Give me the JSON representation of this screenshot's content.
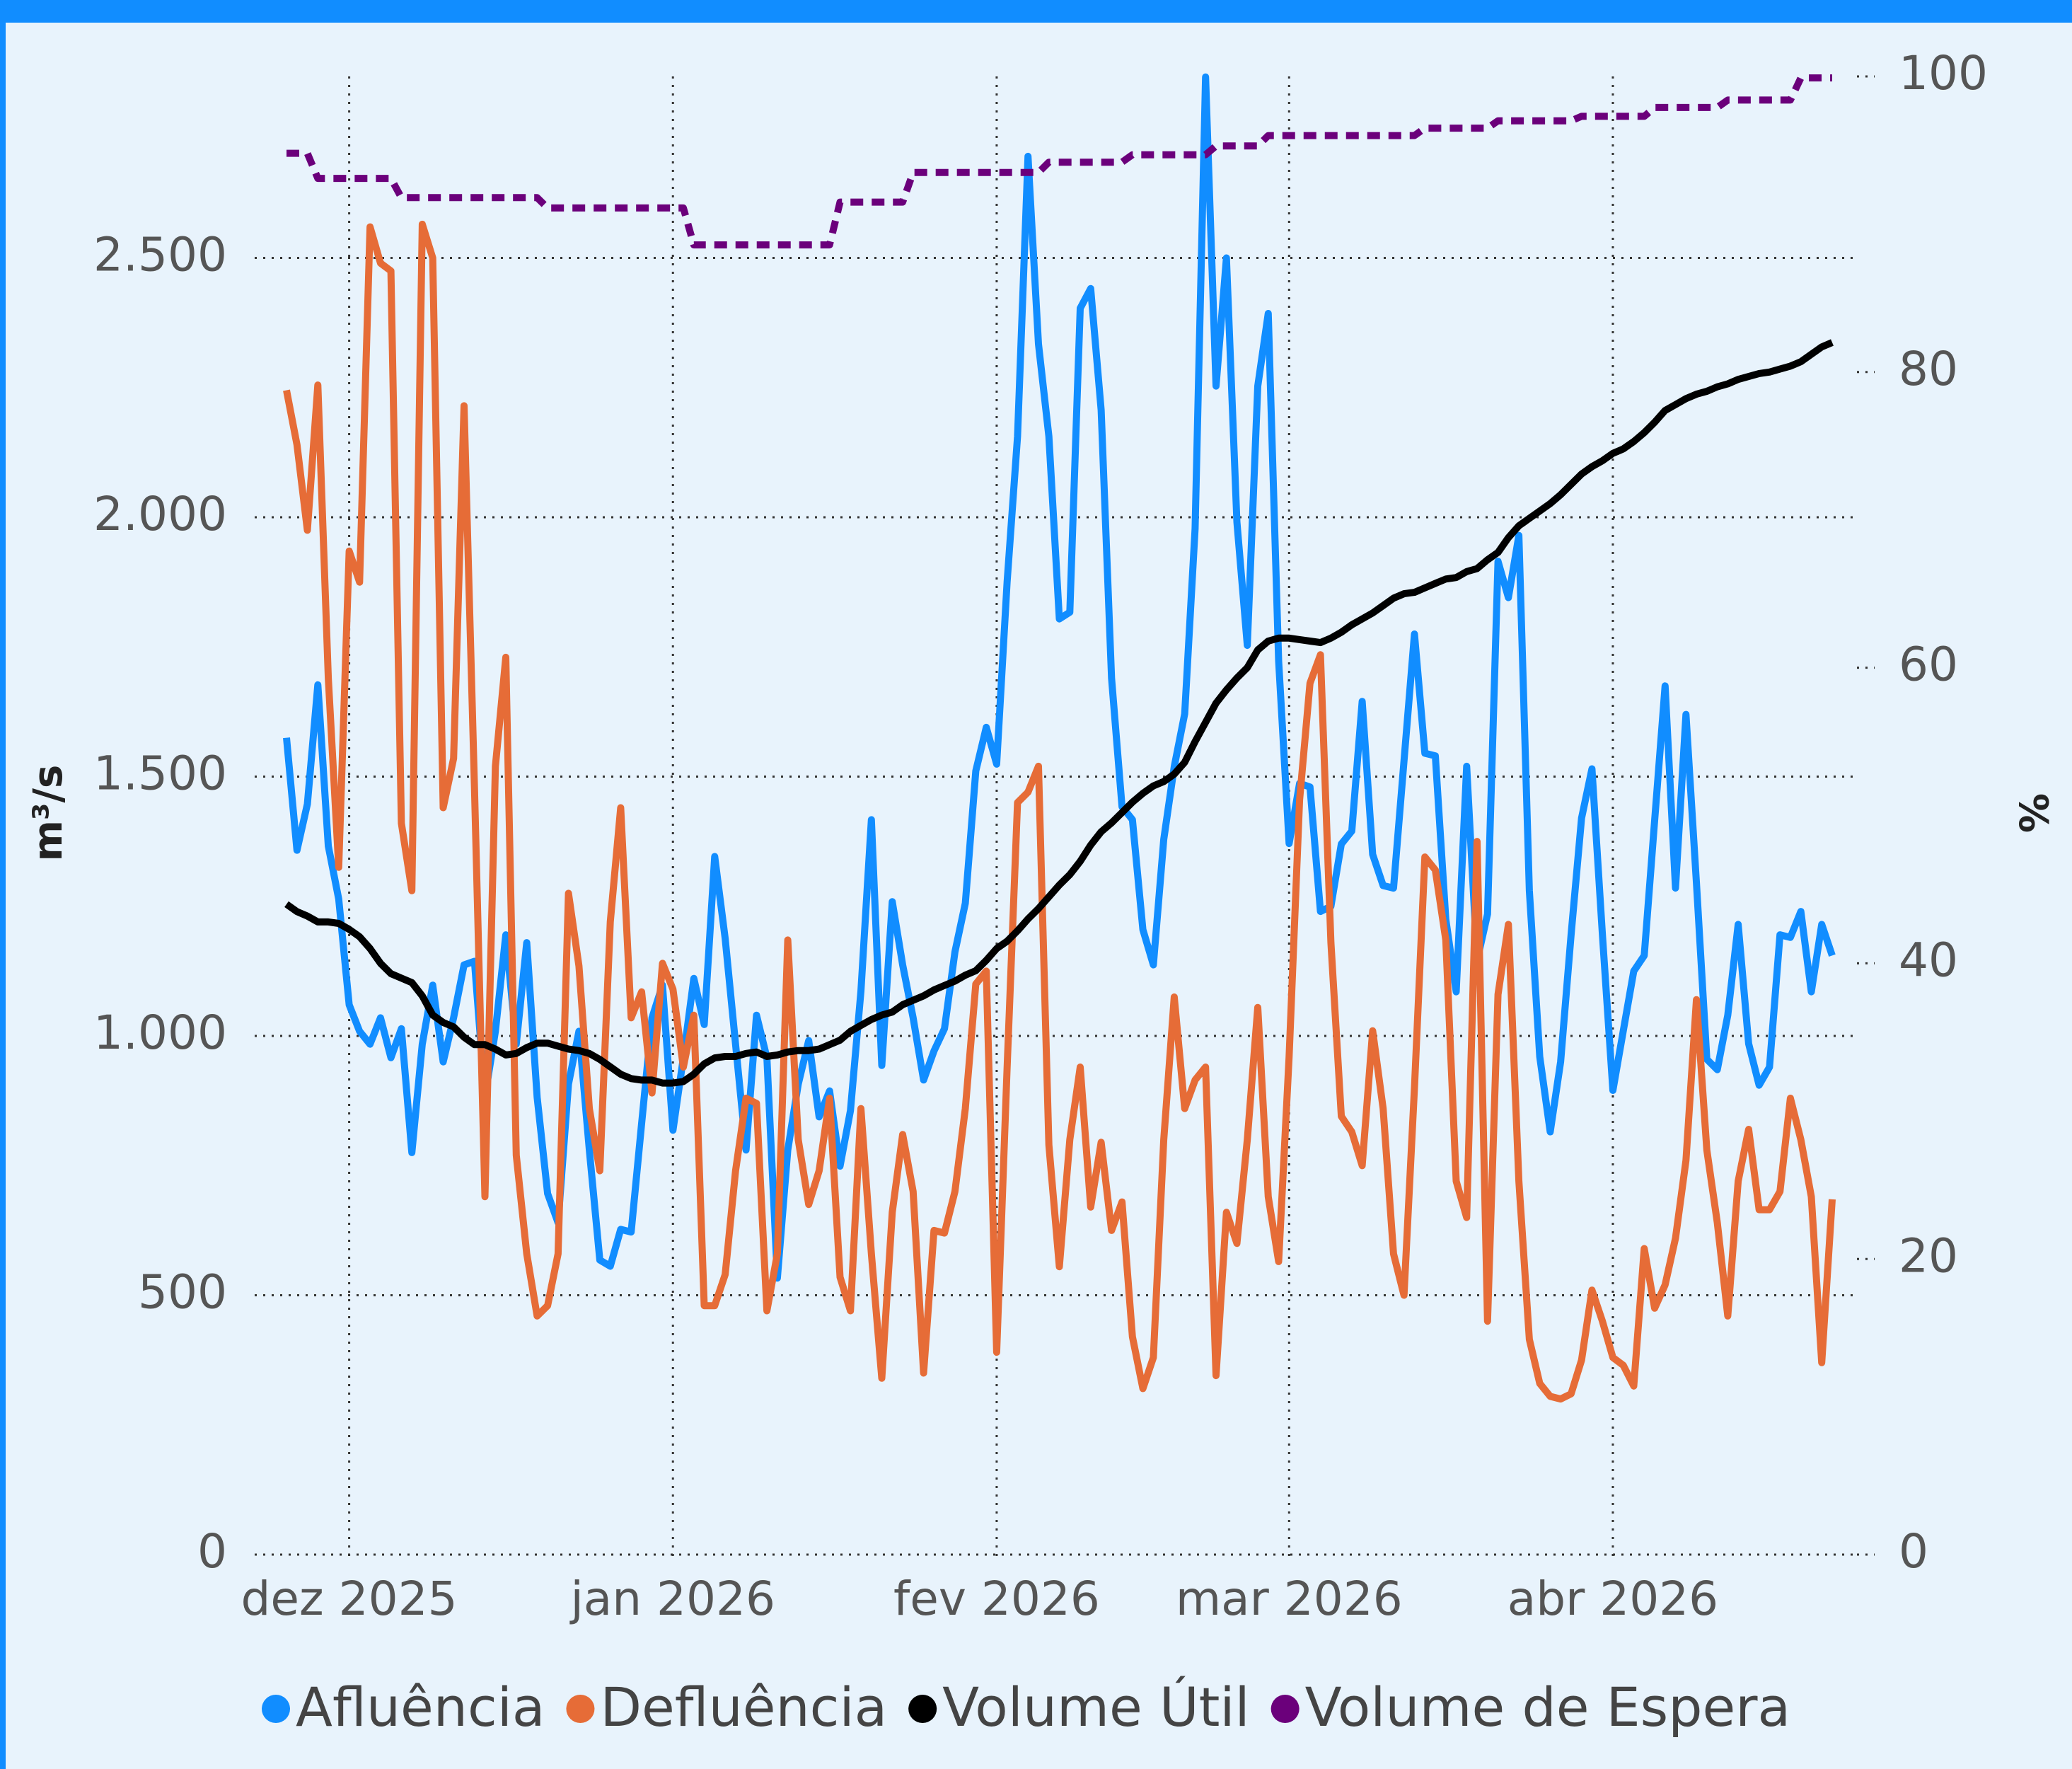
{
  "chart_data": {
    "type": "line",
    "y_label": "m³/s",
    "y2_label": "%",
    "categories": [
      null,
      null,
      null,
      null,
      null,
      null,
      "dez 2025",
      null,
      null,
      null,
      null,
      null,
      null,
      null,
      null,
      null,
      null,
      null,
      null,
      null,
      null,
      null,
      null,
      null,
      null,
      null,
      null,
      null,
      null,
      null,
      null,
      null,
      null,
      null,
      null,
      null,
      null,
      "jan 2026",
      null,
      null,
      null,
      null,
      null,
      null,
      null,
      null,
      null,
      null,
      null,
      null,
      null,
      null,
      null,
      null,
      null,
      null,
      null,
      null,
      null,
      null,
      null,
      null,
      null,
      null,
      null,
      null,
      null,
      null,
      "fev 2026",
      null,
      null,
      null,
      null,
      null,
      null,
      null,
      null,
      null,
      null,
      null,
      null,
      null,
      null,
      null,
      null,
      null,
      null,
      null,
      null,
      null,
      null,
      null,
      null,
      null,
      null,
      null,
      "mar 2026",
      null,
      null,
      null,
      null,
      null,
      null,
      null,
      null,
      null,
      null,
      null,
      null,
      null,
      null,
      null,
      null,
      null,
      null,
      null,
      null,
      null,
      null,
      null,
      null,
      null,
      null,
      null,
      null,
      null,
      null,
      "abr 2026",
      null,
      null,
      null,
      null,
      null,
      null,
      null,
      null,
      null,
      null,
      null,
      null,
      null,
      null,
      null,
      null,
      null,
      null,
      null,
      null,
      null
    ],
    "series": [
      {
        "name": "Afluência",
        "color": "#118dff",
        "axis": "y",
        "values": [
          1575,
          1358,
          1447,
          1677,
          1366,
          1264,
          1060,
          1009,
          984,
          1035,
          958,
          1014,
          775,
          984,
          1098,
          950,
          1035,
          1137,
          1144,
          882,
          1009,
          1195,
          984,
          1180,
          882,
          696,
          640,
          907,
          1009,
          780,
          568,
          556,
          627,
          622,
          831,
          1035,
          1098,
          818,
          958,
          1111,
          1022,
          1346,
          1188,
          984,
          780,
          1040,
          958,
          533,
          780,
          907,
          991,
          844,
          894,
          749,
          856,
          1086,
          1417,
          943,
          1259,
          1137,
          1035,
          915,
          971,
          1014,
          1162,
          1256,
          1511,
          1595,
          1524,
          1876,
          2156,
          2696,
          2334,
          2156,
          1804,
          1817,
          2403,
          2441,
          2207,
          1690,
          1442,
          1417,
          1205,
          1137,
          1379,
          1519,
          1621,
          1978,
          2849,
          2253,
          2500,
          1991,
          1753,
          2253,
          2393,
          1723,
          1371,
          1487,
          1480,
          1240,
          1250,
          1370,
          1395,
          1645,
          1350,
          1290,
          1285,
          1530,
          1775,
          1545,
          1540,
          1225,
          1085,
          1520,
          1145,
          1235,
          1915,
          1845,
          1965,
          1280,
          960,
          815,
          950,
          1195,
          1420,
          1515,
          1195,
          895,
          1010,
          1125,
          1155,
          1415,
          1675,
          1285,
          1620,
          1295,
          955,
          935,
          1040,
          1215,
          985,
          905,
          940,
          1195,
          1190,
          1240,
          1085,
          1215,
          1155
        ]
      },
      {
        "name": "Defluência",
        "color": "#e66c37",
        "axis": "y",
        "values": [
          2245,
          2140,
          1975,
          2255,
          1690,
          1325,
          1935,
          1875,
          2560,
          2490,
          2475,
          1410,
          1280,
          2565,
          2500,
          1440,
          1535,
          2215,
          1480,
          690,
          1520,
          1730,
          770,
          580,
          460,
          480,
          580,
          1275,
          1135,
          860,
          740,
          1220,
          1440,
          1035,
          1085,
          890,
          1140,
          1090,
          940,
          1040,
          480,
          480,
          540,
          740,
          880,
          870,
          470,
          580,
          1185,
          800,
          675,
          740,
          880,
          535,
          470,
          860,
          580,
          340,
          660,
          810,
          700,
          350,
          625,
          620,
          700,
          860,
          1100,
          1125,
          390,
          940,
          1450,
          1470,
          1520,
          790,
          555,
          800,
          940,
          670,
          795,
          625,
          680,
          420,
          320,
          380,
          800,
          1075,
          860,
          915,
          940,
          345,
          660,
          600,
          800,
          1055,
          690,
          565,
          960,
          1455,
          1680,
          1735,
          1180,
          845,
          815,
          750,
          1010,
          860,
          580,
          500,
          900,
          1345,
          1320,
          1185,
          720,
          650,
          1375,
          450,
          1080,
          1215,
          720,
          415,
          330,
          305,
          300,
          310,
          375,
          510,
          450,
          380,
          365,
          325,
          590,
          475,
          520,
          610,
          760,
          1070,
          780,
          640,
          460,
          720,
          820,
          665,
          665,
          700,
          880,
          800,
          690,
          370,
          685
        ]
      },
      {
        "name": "Volume Útil",
        "color": "#000000",
        "axis": "y2",
        "values": [
          44,
          43.5,
          43.2,
          42.8,
          42.8,
          42.7,
          42.3,
          41.8,
          41,
          40,
          39.3,
          39,
          38.7,
          37.8,
          36.5,
          36,
          35.7,
          35,
          34.5,
          34.5,
          34.2,
          33.8,
          33.9,
          34.3,
          34.6,
          34.6,
          34.4,
          34.2,
          34.1,
          33.9,
          33.5,
          33,
          32.5,
          32.2,
          32.1,
          32.1,
          31.9,
          31.9,
          32,
          32.5,
          33.2,
          33.6,
          33.7,
          33.7,
          33.9,
          34,
          33.7,
          33.8,
          34,
          34.1,
          34.1,
          34.2,
          34.5,
          34.8,
          35.4,
          35.8,
          36.2,
          36.5,
          36.7,
          37.2,
          37.5,
          37.8,
          38.2,
          38.5,
          38.8,
          39.2,
          39.5,
          40.2,
          41,
          41.5,
          42.2,
          43,
          43.7,
          44.5,
          45.3,
          46,
          46.9,
          48,
          48.9,
          49.5,
          50.2,
          50.9,
          51.5,
          52,
          52.3,
          52.8,
          53.6,
          55,
          56.3,
          57.6,
          58.5,
          59.3,
          60,
          61.2,
          61.8,
          62,
          62,
          61.9,
          61.8,
          61.7,
          62,
          62.4,
          62.9,
          63.3,
          63.7,
          64.2,
          64.7,
          65,
          65.1,
          65.4,
          65.7,
          66,
          66.1,
          66.5,
          66.7,
          67.3,
          67.8,
          68.8,
          69.6,
          70.1,
          70.6,
          71.1,
          71.7,
          72.4,
          73.1,
          73.6,
          74,
          74.5,
          74.8,
          75.3,
          75.9,
          76.6,
          77.4,
          77.8,
          78.2,
          78.5,
          78.7,
          79,
          79.2,
          79.5,
          79.7,
          79.9,
          80,
          80.2,
          80.4,
          80.7,
          81.2,
          81.7,
          82
        ]
      },
      {
        "name": "Volume de Espera",
        "color": "#6b007b",
        "axis": "y2",
        "dashed": true,
        "values": [
          94.8,
          94.8,
          94.8,
          93.1,
          93.1,
          93.1,
          93.1,
          93.1,
          93.1,
          93.1,
          93.1,
          91.8,
          91.8,
          91.8,
          91.8,
          91.8,
          91.8,
          91.8,
          91.8,
          91.8,
          91.8,
          91.8,
          91.8,
          91.8,
          91.8,
          91.1,
          91.1,
          91.1,
          91.1,
          91.1,
          91.1,
          91.1,
          91.1,
          91.1,
          91.1,
          91.1,
          91.1,
          91.1,
          91.1,
          88.6,
          88.6,
          88.6,
          88.6,
          88.6,
          88.6,
          88.6,
          88.6,
          88.6,
          88.6,
          88.6,
          88.6,
          88.6,
          88.6,
          91.5,
          91.5,
          91.5,
          91.5,
          91.5,
          91.5,
          91.5,
          93.5,
          93.5,
          93.5,
          93.5,
          93.5,
          93.5,
          93.5,
          93.5,
          93.5,
          93.5,
          93.5,
          93.5,
          93.5,
          94.2,
          94.2,
          94.2,
          94.2,
          94.2,
          94.2,
          94.2,
          94.2,
          94.7,
          94.7,
          94.7,
          94.7,
          94.7,
          94.7,
          94.7,
          94.7,
          95.3,
          95.3,
          95.3,
          95.3,
          95.3,
          96,
          96,
          96,
          96,
          96,
          96,
          96,
          96,
          96,
          96,
          96,
          96,
          96,
          96,
          96,
          96.5,
          96.5,
          96.5,
          96.5,
          96.5,
          96.5,
          96.5,
          97,
          97,
          97,
          97,
          97,
          97,
          97,
          97,
          97.3,
          97.3,
          97.3,
          97.3,
          97.3,
          97.3,
          97.3,
          97.9,
          97.9,
          97.9,
          97.9,
          97.9,
          97.9,
          97.9,
          98.4,
          98.4,
          98.4,
          98.4,
          98.4,
          98.4,
          98.4,
          99.9,
          99.9,
          99.9,
          99.9
        ]
      }
    ],
    "ylim": [
      0,
      2850
    ],
    "yticks": [
      0,
      500,
      {
        "value": 1000,
        "label": "1.000"
      },
      {
        "value": 1500,
        "label": "1.500"
      },
      {
        "value": 2000,
        "label": "2.000"
      },
      {
        "value": 2500,
        "label": "2.500"
      }
    ],
    "y2lim": [
      0,
      100
    ],
    "y2ticks": [
      0,
      20,
      40,
      60,
      80,
      100
    ],
    "grid": true,
    "legend": "bottom"
  }
}
